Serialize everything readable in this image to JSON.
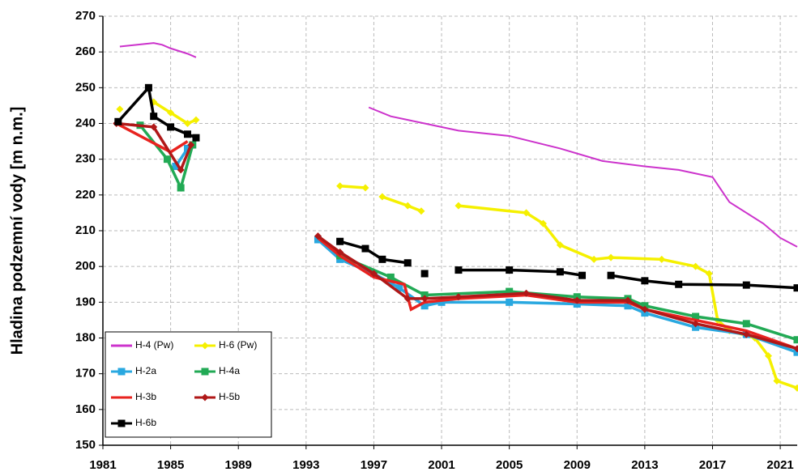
{
  "chart_data": {
    "type": "line",
    "ylabel": "Hladina podzemní vody [m n.m.]",
    "xlim": [
      1981,
      2022
    ],
    "xticks": [
      1981,
      1985,
      1989,
      1993,
      1997,
      2001,
      2005,
      2009,
      2013,
      2017,
      2021
    ],
    "ylim": [
      150,
      270
    ],
    "yticks": [
      150,
      160,
      170,
      180,
      190,
      200,
      210,
      220,
      230,
      240,
      250,
      260,
      270
    ],
    "grid": true,
    "legend": "lower left",
    "series": [
      {
        "name": "H-4 (Pw)",
        "color": "#cc33cc",
        "marker": "none",
        "x": [
          1982,
          1984,
          1984.5,
          1985,
          1986,
          1986.5,
          null,
          1995.2,
          null,
          1996.7,
          1998,
          2000,
          2002,
          2005,
          2008,
          2010.5,
          2013,
          2015,
          2017,
          2018,
          2020,
          2021,
          2022
        ],
        "values": [
          261.5,
          262.5,
          262,
          261,
          259.5,
          258.5,
          null,
          246.5,
          null,
          244.5,
          242,
          240,
          238,
          236.5,
          233,
          229.5,
          228,
          227,
          225,
          218,
          212,
          208,
          205.5
        ]
      },
      {
        "name": "H-6 (Pw)",
        "color": "#f5f000",
        "marker": "diamond",
        "x": [
          1982,
          null,
          1984,
          1985,
          1986,
          1986.5,
          null,
          1995,
          1996.5,
          null,
          1997.5,
          1999,
          1999.8,
          null,
          2002,
          2006,
          2007,
          2008,
          2010,
          2011,
          2014,
          2016,
          2016.8,
          2017.3,
          2018,
          2019.5,
          2020.3,
          2020.8,
          2022
        ],
        "values": [
          244,
          null,
          246,
          243,
          240,
          241,
          null,
          222.5,
          222,
          null,
          219.5,
          217,
          215.5,
          null,
          217,
          215,
          212,
          206,
          202,
          202.5,
          202,
          200,
          198,
          185,
          182,
          180,
          175,
          168,
          166
        ]
      },
      {
        "name": "H-2a",
        "color": "#29a8e0",
        "marker": "square",
        "x": [
          1985.3,
          1986,
          null,
          1993.7,
          1995,
          1997,
          1998.5,
          2000,
          2001,
          2005,
          2009,
          2012,
          2013,
          2016,
          2019,
          2022
        ],
        "values": [
          228,
          233,
          null,
          207.5,
          202,
          198,
          194,
          189,
          190,
          190,
          189.5,
          189,
          187,
          183,
          181,
          176
        ]
      },
      {
        "name": "H-4a",
        "color": "#22aa55",
        "marker": "square",
        "x": [
          1983.2,
          1984.8,
          1985.6,
          1986.3,
          null,
          1995,
          1998,
          2000,
          2005,
          2009,
          2012,
          2013,
          2016,
          2019,
          2022
        ],
        "values": [
          239.5,
          230,
          222,
          234,
          null,
          203,
          197,
          192,
          193,
          191.5,
          191,
          189,
          186,
          184,
          179.5
        ]
      },
      {
        "name": "H-3b",
        "color": "#e8231f",
        "marker": "none",
        "x": [
          1981.8,
          1985,
          1986,
          null,
          1993.7,
          1995,
          1997,
          1998.8,
          1999.2,
          2000,
          2002,
          2006,
          2009,
          2012,
          2013,
          2016,
          2019,
          2022
        ],
        "values": [
          240,
          232,
          235,
          null,
          208,
          203,
          197,
          195,
          188,
          190,
          191,
          192,
          190,
          190,
          188,
          185,
          182,
          177
        ]
      },
      {
        "name": "H-5b",
        "color": "#b01818",
        "marker": "diamond",
        "x": [
          1981.8,
          1984,
          1985.6,
          1986.2,
          null,
          1993.7,
          1995,
          1997,
          1999,
          2000,
          2002,
          2006,
          2009,
          2012,
          2013,
          2016,
          2019,
          2022
        ],
        "values": [
          240,
          239,
          227,
          234,
          null,
          208.5,
          204,
          198,
          191,
          191,
          191.5,
          192.5,
          190.5,
          190.5,
          188,
          184,
          181,
          177
        ]
      },
      {
        "name": "H-6b",
        "color": "#000000",
        "marker": "square",
        "x": [
          1981.9,
          1983.7,
          1984,
          1985,
          1986,
          1986.5,
          null,
          1995,
          1996.5,
          1997.5,
          1999,
          null,
          2000,
          null,
          2002,
          2005,
          2008,
          2009.3,
          null,
          2011,
          2013,
          2015,
          2019,
          2022
        ],
        "values": [
          240.5,
          250,
          242,
          239,
          237,
          236,
          null,
          207,
          205,
          202,
          201,
          null,
          198,
          null,
          199,
          199,
          198.5,
          197.5,
          null,
          197.5,
          196,
          195,
          194.8,
          194
        ]
      }
    ]
  }
}
